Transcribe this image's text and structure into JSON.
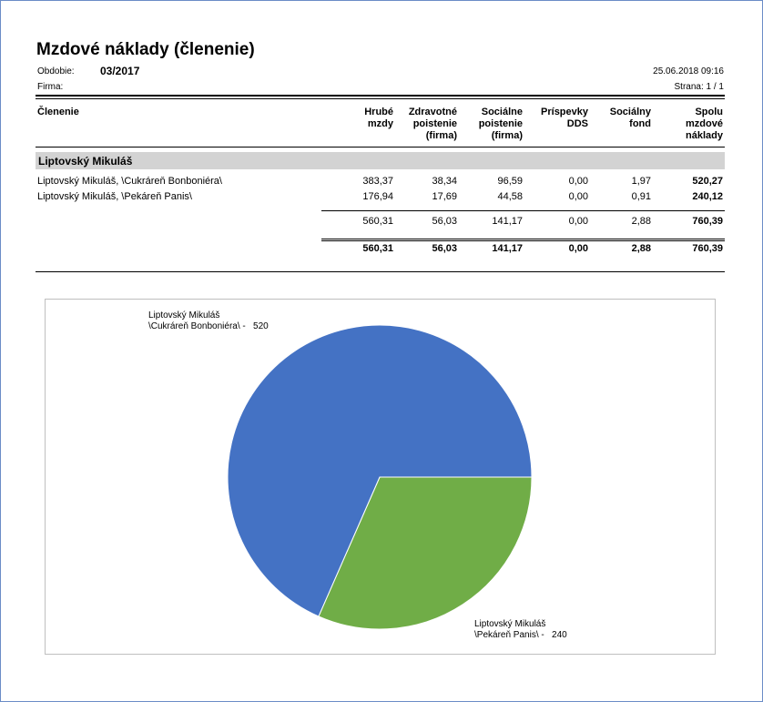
{
  "report": {
    "title": "Mzdové náklady (členenie)",
    "period_label": "Obdobie:",
    "period_value": "03/2017",
    "company_label": "Firma:",
    "timestamp": "25.06.2018 09:16",
    "page": "Strana: 1 / 1"
  },
  "table": {
    "columns": {
      "clenenie": "Členenie",
      "hrube1": "Hrubé",
      "hrube2": "mzdy",
      "zdrav1": "Zdravotné",
      "zdrav2": "poistenie",
      "zdrav3": "(firma)",
      "soc1": "Sociálne",
      "soc2": "poistenie",
      "soc3": "(firma)",
      "dds1": "Príspevky",
      "dds2": "DDS",
      "fond1": "Sociálny",
      "fond2": "fond",
      "spolu1": "Spolu",
      "spolu2": "mzdové",
      "spolu3": "náklady"
    },
    "group": "Liptovský Mikuláš",
    "rows": [
      {
        "name": "Liptovský Mikuláš, \\Cukráreň Bonboniéra\\",
        "v": [
          "383,37",
          "38,34",
          "96,59",
          "0,00",
          "1,97",
          "520,27"
        ]
      },
      {
        "name": "Liptovský Mikuláš, \\Pekáreň Panis\\",
        "v": [
          "176,94",
          "17,69",
          "44,58",
          "0,00",
          "0,91",
          "240,12"
        ]
      }
    ],
    "subtotal": [
      "560,31",
      "56,03",
      "141,17",
      "0,00",
      "2,88",
      "760,39"
    ],
    "total": [
      "560,31",
      "56,03",
      "141,17",
      "0,00",
      "2,88",
      "760,39"
    ]
  },
  "chart_data": {
    "type": "pie",
    "categories": [
      "Liptovský Mikuláš \\Cukráreň Bonboniéra\\",
      "Liptovský Mikuláš \\Pekáreň Panis\\"
    ],
    "values": [
      520,
      240
    ],
    "labels": [
      "Liptovský Mikuláš\n\\Cukráreň Bonboniéra\\ -   520",
      "Liptovský Mikuláš\n\\Pekáreň Panis\\ -   240"
    ],
    "colors": [
      "#4472c4",
      "#70ad47"
    ]
  }
}
